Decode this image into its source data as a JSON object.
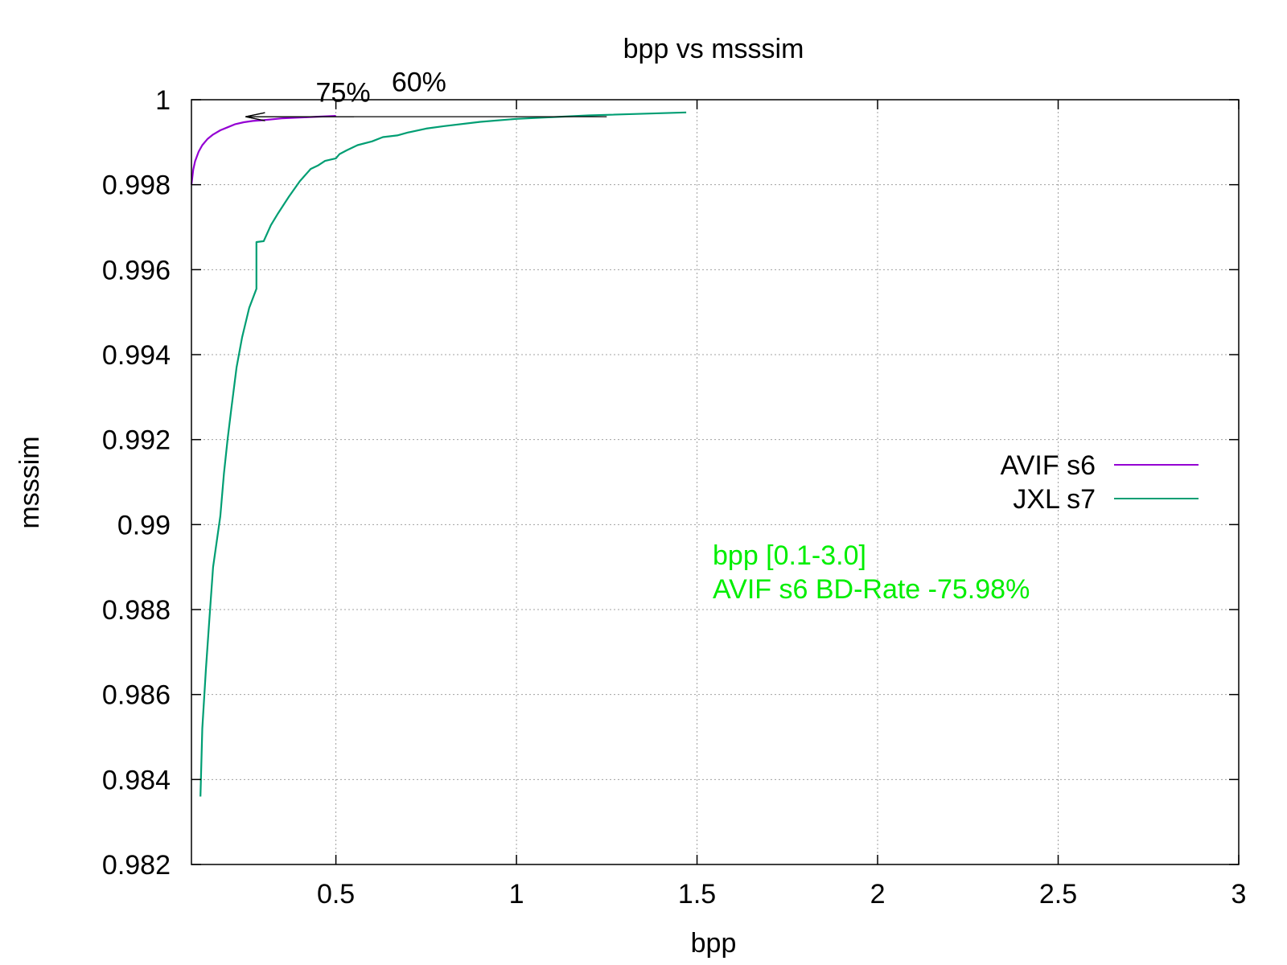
{
  "chart_data": {
    "type": "line",
    "title": "bpp vs msssim",
    "xlabel": "bpp",
    "ylabel": "msssim",
    "xlim": [
      0.1,
      3.0
    ],
    "ylim": [
      0.982,
      1.0
    ],
    "grid": true,
    "x_ticks": [
      "0.5",
      "1",
      "1.5",
      "2",
      "2.5",
      "3"
    ],
    "y_ticks": [
      "0.982",
      "0.984",
      "0.986",
      "0.988",
      "0.99",
      "0.992",
      "0.994",
      "0.996",
      "0.998",
      "1"
    ],
    "legend_position": "right",
    "series": [
      {
        "name": "AVIF s6",
        "color": "#9400d3",
        "x": [
          0.1,
          0.105,
          0.11,
          0.12,
          0.13,
          0.145,
          0.16,
          0.18,
          0.2,
          0.22,
          0.245,
          0.27,
          0.3,
          0.35,
          0.4,
          0.45,
          0.5
        ],
        "y": [
          0.998,
          0.99835,
          0.99855,
          0.99878,
          0.99893,
          0.99908,
          0.99918,
          0.99928,
          0.99935,
          0.99942,
          0.99947,
          0.9995,
          0.99952,
          0.99956,
          0.99958,
          0.9996,
          0.99962
        ]
      },
      {
        "name": "JXL s7",
        "color": "#009e73",
        "x": [
          0.125,
          0.13,
          0.14,
          0.15,
          0.16,
          0.18,
          0.19,
          0.2,
          0.21,
          0.225,
          0.24,
          0.26,
          0.28,
          0.28,
          0.3,
          0.32,
          0.34,
          0.37,
          0.4,
          0.43,
          0.45,
          0.47,
          0.5,
          0.51,
          0.53,
          0.56,
          0.6,
          0.63,
          0.67,
          0.7,
          0.75,
          0.8,
          0.9,
          1.0,
          1.2,
          1.47
        ],
        "y": [
          0.9836,
          0.9852,
          0.9866,
          0.9878,
          0.989,
          0.9902,
          0.9912,
          0.992,
          0.9927,
          0.9937,
          0.9944,
          0.9951,
          0.99555,
          0.99665,
          0.99667,
          0.99705,
          0.99733,
          0.99772,
          0.99808,
          0.99837,
          0.99845,
          0.99856,
          0.99862,
          0.99872,
          0.99881,
          0.99893,
          0.99902,
          0.99912,
          0.99916,
          0.99923,
          0.99932,
          0.99938,
          0.99948,
          0.99955,
          0.99963,
          0.9997
        ]
      }
    ],
    "annotations": [
      {
        "text": "75%",
        "x": 0.52,
        "y": 0.99995
      },
      {
        "text": "60%",
        "x": 0.73,
        "y": 1.0002
      }
    ],
    "arrows": [
      {
        "from": [
          1.25,
          0.9996
        ],
        "to": [
          0.25,
          0.9996
        ]
      },
      {
        "from": [
          0.55,
          0.9996
        ],
        "to": [
          0.25,
          0.9996
        ]
      }
    ],
    "note": {
      "lines": [
        "bpp [0.1-3.0]",
        "AVIF s6 BD-Rate -75.98%"
      ],
      "color": "#00ee00"
    }
  }
}
